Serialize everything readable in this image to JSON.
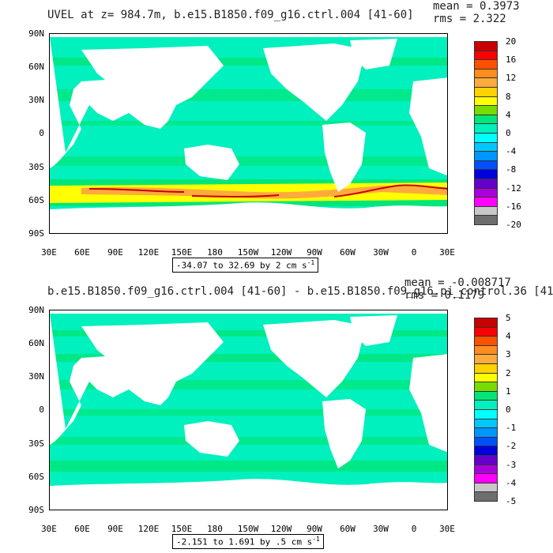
{
  "panels": [
    {
      "id": "top",
      "title": "UVEL at z= 984.7m, b.e15.B1850.f09_g16.ctrl.004 [41-60]",
      "mean_text": "mean = 0.3973",
      "rms_text": "rms = 2.322",
      "range_text": "-34.07 to 32.69 by 2 cm s",
      "range_unit_sup": "-1",
      "legend_labels": [
        "20",
        "16",
        "12",
        "8",
        "4",
        "0",
        "-4",
        "-8",
        "-12",
        "-16",
        "-20"
      ],
      "legend_colors": [
        "#c80000",
        "#ff0000",
        "#ff5000",
        "#ff8c1e",
        "#ffaa3c",
        "#ffd200",
        "#ffff00",
        "#78dc00",
        "#00e678",
        "#00f0be",
        "#00ffff",
        "#00c8ff",
        "#0096ff",
        "#0050ff",
        "#0000dc",
        "#6400c8",
        "#aa00dc",
        "#ff00ff",
        "#c8c8c8",
        "#6e6e6e"
      ]
    },
    {
      "id": "bottom",
      "title": "b.e15.B1850.f09_g16.ctrl.004 [41-60] - b.e15.B1850.f09_g16.pi_control.36 [41-",
      "mean_text": "mean = -0.008717",
      "rms_text": "rms = 0.1179",
      "range_text": "-2.151 to 1.691 by .5 cm s",
      "range_unit_sup": "-1",
      "legend_labels": [
        "5",
        "4",
        "3",
        "2",
        "1",
        "0",
        "-1",
        "-2",
        "-3",
        "-4",
        "-5"
      ],
      "legend_colors": [
        "#c80000",
        "#ff0000",
        "#ff5000",
        "#ff8c1e",
        "#ffaa3c",
        "#ffd200",
        "#ffff00",
        "#78dc00",
        "#00e678",
        "#00f0be",
        "#00ffff",
        "#00c8ff",
        "#0096ff",
        "#0050ff",
        "#0000dc",
        "#6400c8",
        "#aa00dc",
        "#ff00ff",
        "#c8c8c8",
        "#6e6e6e"
      ]
    }
  ],
  "axes": {
    "y_labels": [
      "90N",
      "60N",
      "30N",
      "0",
      "30S",
      "60S",
      "90S"
    ],
    "x_labels": [
      "30E",
      "60E",
      "90E",
      "120E",
      "150E",
      "180",
      "150W",
      "120W",
      "90W",
      "60W",
      "30W",
      "0",
      "30E"
    ]
  },
  "colors": {
    "ocean_base": "#00f0be",
    "ocean_positive": "#00e678",
    "land": "#ffffff",
    "acc_strong": "#ffff00",
    "acc_orange": "#ffaa3c",
    "acc_red": "#c80000"
  }
}
